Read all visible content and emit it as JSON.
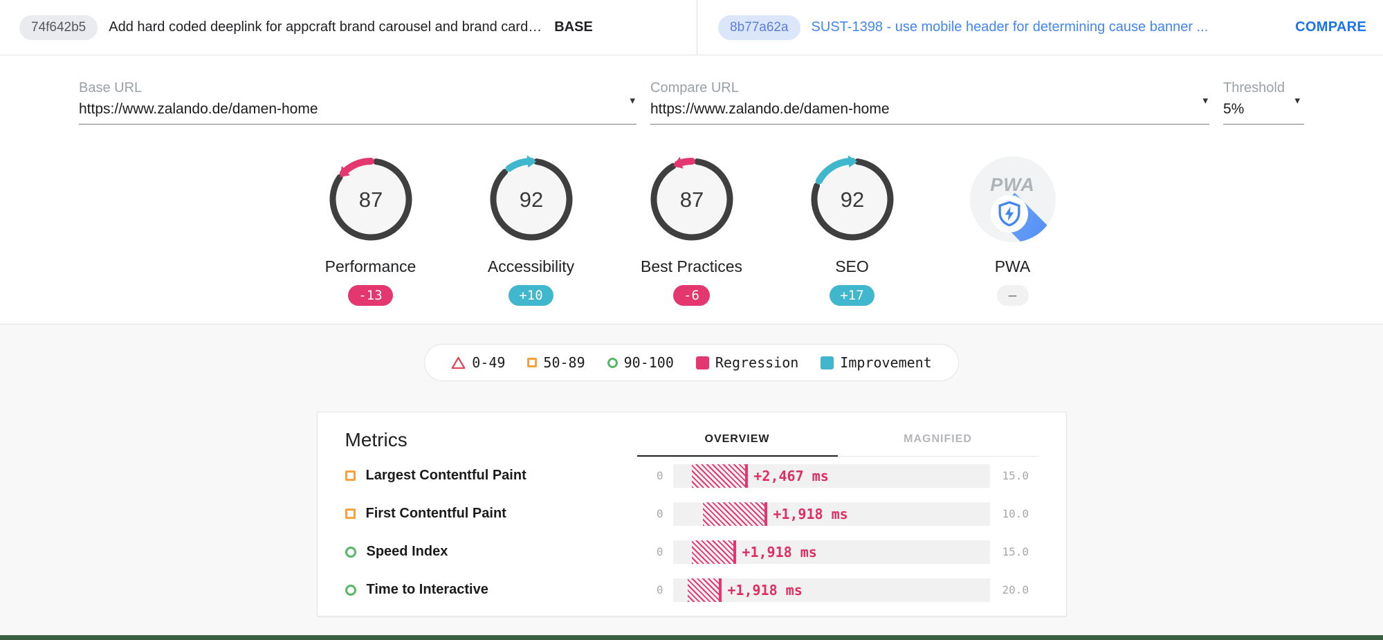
{
  "colors": {
    "regression": "#e4376f",
    "regression_text": "#de2e63",
    "improvement": "#41b7cd",
    "orange": "#f9a13c",
    "green": "#56b864",
    "fail_red": "#e0485c",
    "ring_dark": "#3f3f3f",
    "gauge_fill": "#f6f6f7",
    "footer_green": "#3a5f41",
    "blue_link": "#4285f4"
  },
  "header": {
    "base": {
      "hash": "74f642b5",
      "message": "Add hard coded deeplink for appcraft brand carousel and brand card…",
      "role_label": "BASE"
    },
    "compare": {
      "hash": "8b77a62a",
      "message": "SUST-1398 - use mobile header for determining cause banner ...",
      "role_label": "COMPARE"
    }
  },
  "form": {
    "base_url": {
      "label": "Base URL",
      "value": "https://www.zalando.de/damen-home"
    },
    "compare_url": {
      "label": "Compare URL",
      "value": "https://www.zalando.de/damen-home"
    },
    "threshold": {
      "label": "Threshold",
      "value": "5%"
    }
  },
  "gauges": [
    {
      "name": "Performance",
      "score": "87",
      "delta_label": "-13",
      "delta_pct": 13,
      "direction": "regression"
    },
    {
      "name": "Accessibility",
      "score": "92",
      "delta_label": "+10",
      "delta_pct": 10,
      "direction": "improvement"
    },
    {
      "name": "Best Practices",
      "score": "87",
      "delta_label": "-6",
      "delta_pct": 6,
      "direction": "regression"
    },
    {
      "name": "SEO",
      "score": "92",
      "delta_label": "+17",
      "delta_pct": 17,
      "direction": "improvement"
    },
    {
      "name": "PWA",
      "score": "",
      "delta_label": "–",
      "delta_pct": 0,
      "direction": "none",
      "type": "pwa"
    }
  ],
  "legend": [
    {
      "icon": "triangle-outline",
      "color_key": "fail_red",
      "label": "0-49"
    },
    {
      "icon": "square-outline",
      "color_key": "orange",
      "label": "50-89"
    },
    {
      "icon": "circle-outline",
      "color_key": "green",
      "label": "90-100"
    },
    {
      "icon": "square-fill",
      "color_key": "regression",
      "label": "Regression"
    },
    {
      "icon": "square-fill",
      "color_key": "improvement",
      "label": "Improvement"
    }
  ],
  "metrics": {
    "title": "Metrics",
    "tabs": [
      {
        "label": "OVERVIEW",
        "active": true
      },
      {
        "label": "MAGNIFIED",
        "active": false
      }
    ],
    "rows": [
      {
        "name": "Largest Contentful Paint",
        "status": "average",
        "axis_min": "0",
        "axis_max": "15.0",
        "delta_label": "+2,467 ms",
        "bar_start": 0.061,
        "bar_end": 0.229
      },
      {
        "name": "First Contentful Paint",
        "status": "average",
        "axis_min": "0",
        "axis_max": "10.0",
        "delta_label": "+1,918 ms",
        "bar_start": 0.096,
        "bar_end": 0.29
      },
      {
        "name": "Speed Index",
        "status": "pass",
        "axis_min": "0",
        "axis_max": "15.0",
        "delta_label": "+1,918 ms",
        "bar_start": 0.061,
        "bar_end": 0.192
      },
      {
        "name": "Time to Interactive",
        "status": "pass",
        "axis_min": "0",
        "axis_max": "20.0",
        "delta_label": "+1,918 ms",
        "bar_start": 0.046,
        "bar_end": 0.146
      }
    ]
  }
}
